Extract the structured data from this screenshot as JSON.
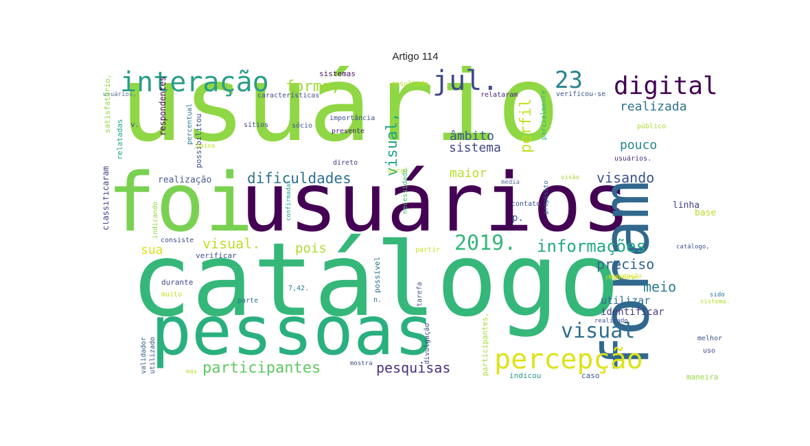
{
  "title": "Artigo 114",
  "words": [
    {
      "text": "usuário",
      "color": "#8fd744",
      "rot": 0
    },
    {
      "text": "foi",
      "color": "#7ad151",
      "rot": 0
    },
    {
      "text": "usuários",
      "color": "#440154",
      "rot": 0
    },
    {
      "text": "catálogo",
      "color": "#35b779",
      "rot": 0
    },
    {
      "text": "pessoas",
      "color": "#2ab07f",
      "rot": 0
    },
    {
      "text": "foram",
      "color": "#31688e",
      "rot": 270
    },
    {
      "text": "interação",
      "color": "#2a9d8a",
      "rot": 0
    },
    {
      "text": "jul.",
      "color": "#3e4a89",
      "rot": 0
    },
    {
      "text": "23",
      "color": "#26838f",
      "rot": 0
    },
    {
      "text": "digital",
      "color": "#440154",
      "rot": 0
    },
    {
      "text": "forma,",
      "color": "#a0da39",
      "rot": 0
    },
    {
      "text": "visual,",
      "color": "#1fa187",
      "rot": 270
    },
    {
      "text": "perfil",
      "color": "#c2df23",
      "rot": 270
    },
    {
      "text": "âmbito",
      "color": "#39558c",
      "rot": 0
    },
    {
      "text": "sistema",
      "color": "#404387",
      "rot": 0
    },
    {
      "text": "realizada",
      "color": "#2c728e",
      "rot": 0
    },
    {
      "text": "pouco",
      "color": "#25858e",
      "rot": 0
    },
    {
      "text": "dificuldades",
      "color": "#2d708e",
      "rot": 0
    },
    {
      "text": "maior",
      "color": "#b5de2b",
      "rot": 0
    },
    {
      "text": "visando",
      "color": "#3a548c",
      "rot": 0
    },
    {
      "text": "também",
      "color": "#20928c",
      "rot": 270
    },
    {
      "text": "visual.",
      "color": "#bddf26",
      "rot": 0
    },
    {
      "text": "2019.",
      "color": "#34b679",
      "rot": 0
    },
    {
      "text": "informações",
      "color": "#22a884",
      "rot": 0
    },
    {
      "text": "sua",
      "color": "#d8e219",
      "rot": 0
    },
    {
      "text": "pois",
      "color": "#addc30",
      "rot": 0
    },
    {
      "text": "preciso",
      "color": "#33638d",
      "rot": 0
    },
    {
      "text": "meio",
      "color": "#287c8e",
      "rot": 0
    },
    {
      "text": "visual",
      "color": "#2e6f8e",
      "rot": 0
    },
    {
      "text": "percepção",
      "color": "#dde318",
      "rot": 0
    },
    {
      "text": "participantes",
      "color": "#5ec962",
      "rot": 0
    },
    {
      "text": "pesquisas",
      "color": "#472f7d",
      "rot": 0
    },
    {
      "text": "utilizar",
      "color": "#2f6c8e",
      "rot": 0
    },
    {
      "text": "identificar",
      "color": "#443a83",
      "rot": 0
    },
    {
      "text": "realização",
      "color": "#4a5c8e",
      "rot": 0
    },
    {
      "text": "p.",
      "color": "#3b528b",
      "rot": 0
    },
    {
      "text": "linha",
      "color": "#414487",
      "rot": 0
    },
    {
      "text": "base",
      "color": "#b8de29",
      "rot": 0
    },
    {
      "text": "sistemas",
      "color": "#471164",
      "rot": 0
    },
    {
      "text": "resultado",
      "color": "#b5de2b",
      "rot": 0
    },
    {
      "text": "características",
      "color": "#3e4989",
      "rot": 0
    },
    {
      "text": "relataram",
      "color": "#482576",
      "rot": 0
    },
    {
      "text": "verificou-se",
      "color": "#3b528b",
      "rot": 0
    },
    {
      "text": "usuários,",
      "color": "#5c6f9c",
      "rot": 0
    },
    {
      "text": "satisfatório,",
      "color": "#8fd744",
      "rot": 270
    },
    {
      "text": "respondentes",
      "color": "#440154",
      "rot": 270
    },
    {
      "text": "percentual",
      "color": "#2a788e",
      "rot": 270
    },
    {
      "text": "sítios",
      "color": "#3e4a89",
      "rot": 0
    },
    {
      "text": "sócio",
      "color": "#39568c",
      "rot": 0
    },
    {
      "text": "importância",
      "color": "#3e4a89",
      "rot": 0
    },
    {
      "text": "presente",
      "color": "#482173",
      "rot": 0
    },
    {
      "text": "relatadas",
      "color": "#20a386",
      "rot": 270
    },
    {
      "text": "v.",
      "color": "#3b528b",
      "rot": 0
    },
    {
      "text": "possibilitou",
      "color": "#3e4a89",
      "rot": 270
    },
    {
      "text": "baixa",
      "color": "#c2df23",
      "rot": 0
    },
    {
      "text": "público",
      "color": "#a5db36",
      "rot": 0
    },
    {
      "text": "usuários.",
      "color": "#472c7a",
      "rot": 0
    },
    {
      "text": "parcialmente",
      "color": "#31b57b",
      "rot": 270
    },
    {
      "text": "direto",
      "color": "#443983",
      "rot": 0
    },
    {
      "text": "classificaram",
      "color": "#414487",
      "rot": 270
    },
    {
      "text": "geral",
      "color": "#b5de2b",
      "rot": 0
    },
    {
      "text": "média",
      "color": "#5c6f9c",
      "rot": 0
    },
    {
      "text": "visão",
      "color": "#a5db36",
      "rot": 0
    },
    {
      "text": "propósito",
      "color": "#31668e",
      "rot": 270
    },
    {
      "text": "contato",
      "color": "#3e4a89",
      "rot": 0
    },
    {
      "text": "indicando",
      "color": "#90d743",
      "rot": 270
    },
    {
      "text": "confirmadas",
      "color": "#1fa088",
      "rot": 270
    },
    {
      "text": "necessidade",
      "color": "#48c16e",
      "rot": 270
    },
    {
      "text": "consiste",
      "color": "#3f4788",
      "rot": 0
    },
    {
      "text": "verificar",
      "color": "#3a548c",
      "rot": 0
    },
    {
      "text": "catálogo,",
      "color": "#3b528b",
      "rot": 0
    },
    {
      "text": "partir",
      "color": "#c8e020",
      "rot": 0
    },
    {
      "text": "possível",
      "color": "#2c728e",
      "rot": 270
    },
    {
      "text": "cegueira.",
      "color": "#d0e11c",
      "rot": 0
    },
    {
      "text": "concepção",
      "color": "#d0e11c",
      "rot": 0
    },
    {
      "text": "durante",
      "color": "#3e4a89",
      "rot": 0
    },
    {
      "text": "muito",
      "color": "#c2df23",
      "rot": 0
    },
    {
      "text": "7,42.",
      "color": "#2a788e",
      "rot": 0
    },
    {
      "text": "parte",
      "color": "#2c728e",
      "rot": 0
    },
    {
      "text": "n.",
      "color": "#2e6e8e",
      "rot": 0
    },
    {
      "text": "tarefa",
      "color": "#38598c",
      "rot": 270
    },
    {
      "text": "sido",
      "color": "#2c728e",
      "rot": 0
    },
    {
      "text": "sistema.",
      "color": "#b5de2b",
      "rot": 0
    },
    {
      "text": "realizado",
      "color": "#3b528b",
      "rot": 0
    },
    {
      "text": "validador",
      "color": "#35608d",
      "rot": 270
    },
    {
      "text": "utilizado",
      "color": "#3d4e8a",
      "rot": 270
    },
    {
      "text": "divulgação",
      "color": "#3e4a89",
      "rot": 270
    },
    {
      "text": "participantes,",
      "color": "#a5db36",
      "rot": 270
    },
    {
      "text": "melhor",
      "color": "#3b528b",
      "rot": 0
    },
    {
      "text": "uso",
      "color": "#3e4989",
      "rot": 0
    },
    {
      "text": "mas",
      "color": "#b5de2b",
      "rot": 0
    },
    {
      "text": "mostra",
      "color": "#3e4a89",
      "rot": 0
    },
    {
      "text": "indicou",
      "color": "#2a9d8a",
      "rot": 0
    },
    {
      "text": "caso",
      "color": "#39558c",
      "rot": 0
    },
    {
      "text": "maneira",
      "color": "#90d743",
      "rot": 0
    }
  ]
}
